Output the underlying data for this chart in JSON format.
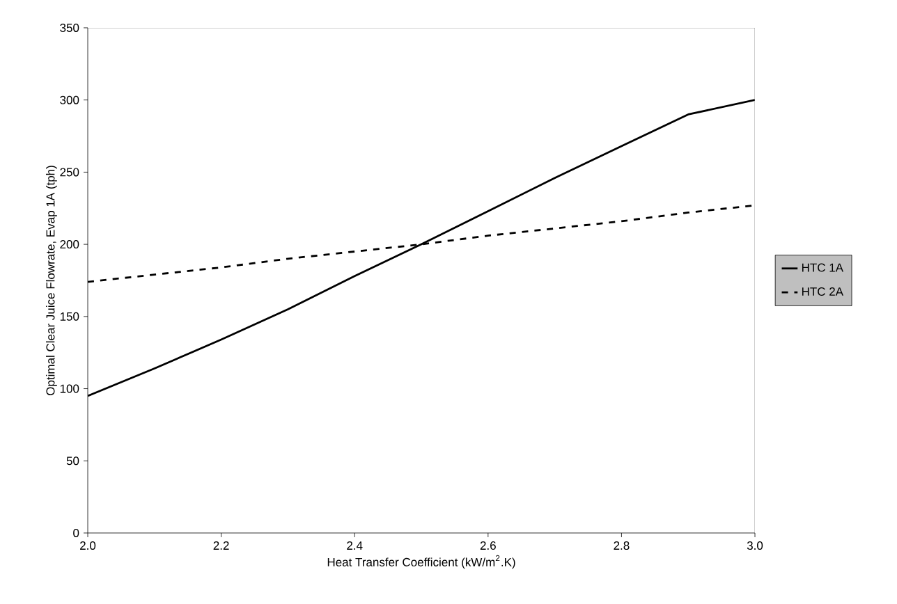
{
  "chart_data": {
    "type": "line",
    "xlabel": "Heat Transfer Coefficient (kW/m$^{2}$.K)",
    "ylabel": "Optimal Clear Juice Flowrate, Evap 1A  (tph)",
    "x": [
      2.0,
      2.1,
      2.2,
      2.3,
      2.4,
      2.5,
      2.6,
      2.7,
      2.8,
      2.9,
      3.0
    ],
    "series": [
      {
        "name": "HTC 1A",
        "color": "#000000",
        "line_style": "solid",
        "values": [
          95,
          114,
          134,
          155,
          178,
          200,
          223,
          246,
          268,
          290,
          300
        ]
      },
      {
        "name": "HTC 2A",
        "color": "#000000",
        "line_style": "dashed",
        "values": [
          174,
          179,
          184,
          190,
          195,
          200,
          206,
          211,
          216,
          222,
          227
        ]
      }
    ],
    "xlim": [
      2.0,
      3.0
    ],
    "ylim": [
      0,
      350
    ],
    "xticks": [
      {
        "value": 2.0,
        "label": "2.0"
      },
      {
        "value": 2.2,
        "label": "2.2"
      },
      {
        "value": 2.4,
        "label": "2.4"
      },
      {
        "value": 2.6,
        "label": "2.6"
      },
      {
        "value": 2.8,
        "label": "2.8"
      },
      {
        "value": 3.0,
        "label": "3.0"
      }
    ],
    "yticks": [
      0,
      50,
      100,
      150,
      200,
      250,
      300,
      350
    ],
    "grid": false,
    "legend": "right",
    "marker": "none"
  }
}
